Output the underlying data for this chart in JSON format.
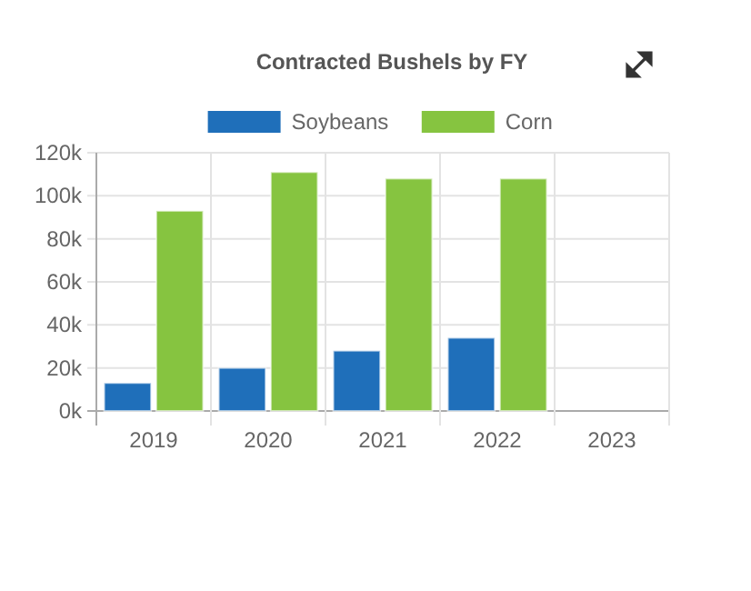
{
  "chart_data": {
    "type": "bar",
    "title": "Contracted Bushels by FY",
    "categories": [
      "2019",
      "2020",
      "2021",
      "2022",
      "2023"
    ],
    "series": [
      {
        "name": "Soybeans",
        "color": "#1f6fba",
        "values": [
          13000,
          20000,
          28000,
          34000,
          null
        ]
      },
      {
        "name": "Corn",
        "color": "#86c440",
        "values": [
          93000,
          111000,
          108000,
          108000,
          null
        ]
      }
    ],
    "ylim": [
      0,
      120000
    ],
    "yticks": [
      {
        "value": 0,
        "label": "0k"
      },
      {
        "value": 20000,
        "label": "20k"
      },
      {
        "value": 40000,
        "label": "40k"
      },
      {
        "value": 60000,
        "label": "60k"
      },
      {
        "value": 80000,
        "label": "80k"
      },
      {
        "value": 100000,
        "label": "100k"
      },
      {
        "value": 120000,
        "label": "120k"
      }
    ],
    "grid": true,
    "legend": "top"
  }
}
